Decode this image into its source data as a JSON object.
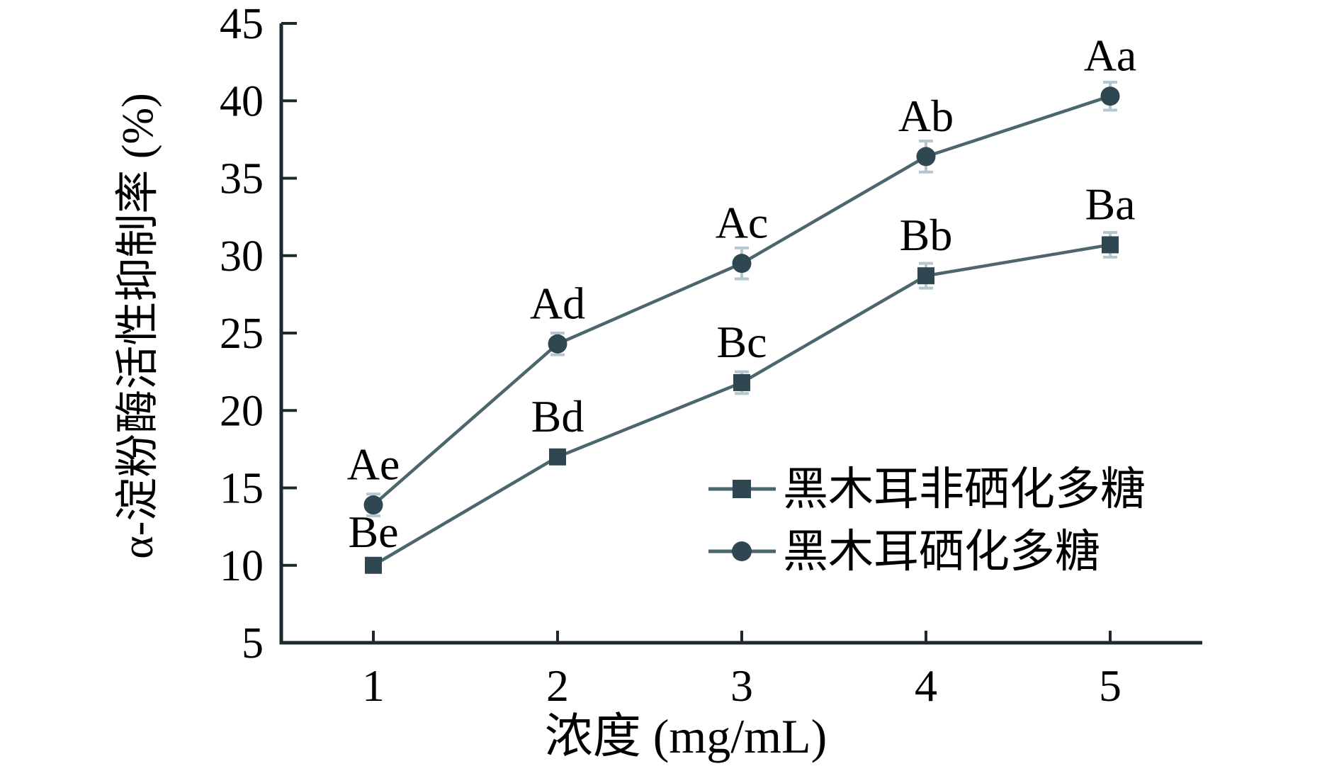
{
  "figure": {
    "background": "#ffffff"
  },
  "chart_data": {
    "type": "line",
    "title": "",
    "xlabel": "浓度 (mg/mL)",
    "ylabel": "α-淀粉酶活性抑制率 (%)",
    "x": [
      1,
      2,
      3,
      4,
      5
    ],
    "xticks": [
      "1",
      "2",
      "3",
      "4",
      "5"
    ],
    "yticks": [
      "5",
      "10",
      "15",
      "20",
      "25",
      "30",
      "35",
      "40",
      "45"
    ],
    "xlim": [
      0.5,
      5.5
    ],
    "ylim": [
      5,
      45
    ],
    "grid": false,
    "legend_position": "inside-lower-right",
    "series": [
      {
        "name": "黑木耳非硒化多糖",
        "marker": "square",
        "values": [
          10.0,
          17.0,
          21.8,
          28.7,
          30.7
        ],
        "errors": [
          0.4,
          0.4,
          0.7,
          0.8,
          0.8
        ],
        "point_labels": [
          "Be",
          "Bd",
          "Bc",
          "Bb",
          "Ba"
        ]
      },
      {
        "name": "黑木耳硒化多糖",
        "marker": "circle",
        "values": [
          13.9,
          24.3,
          29.5,
          36.4,
          40.3
        ],
        "errors": [
          0.7,
          0.7,
          1.0,
          1.0,
          0.9
        ],
        "point_labels": [
          "Ae",
          "Ad",
          "Ac",
          "Ab",
          "Aa"
        ]
      }
    ],
    "colors": {
      "axis": "#1c2a2e",
      "text": "#000000",
      "series_line": "#4d656c",
      "marker": "#2f4750",
      "error_bar": "#b6c6cd",
      "background": "#ffffff"
    }
  }
}
